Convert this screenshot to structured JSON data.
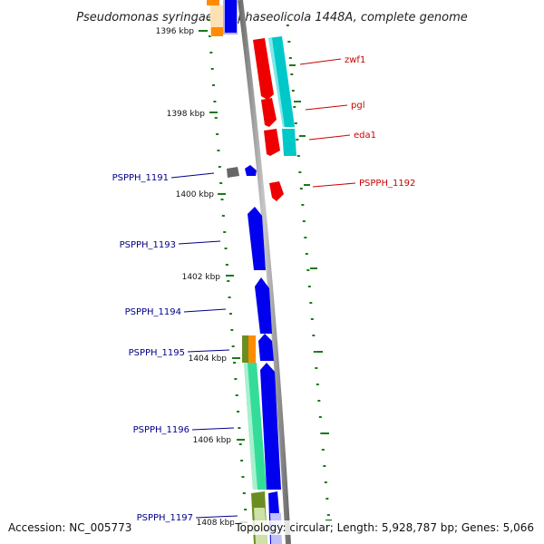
{
  "title": "Pseudomonas syringae pv. phaseolicola 1448A, complete genome",
  "accession": "Accession: NC_005773",
  "topology": "Topology: circular; Length: 5,928,787 bp; Genes: 5,066",
  "colors": {
    "backbone": "#8c8c8c",
    "tick": "#1a7a1a",
    "left_label": "#00008b",
    "right_label": "#cc0000",
    "blue": "#0000ee",
    "red": "#ee0000",
    "cyan": "#00c8c8",
    "green": "#33dd99",
    "olive": "#6b8e23",
    "orange": "#ff8c00",
    "gray": "#666666"
  },
  "kbp_labels": [
    {
      "text": "1396 kbp",
      "pos": 1396
    },
    {
      "text": "1398 kbp",
      "pos": 1398
    },
    {
      "text": "1400 kbp",
      "pos": 1400
    },
    {
      "text": "1402 kbp",
      "pos": 1402
    },
    {
      "text": "1404 kbp",
      "pos": 1404
    },
    {
      "text": "1406 kbp",
      "pos": 1406
    },
    {
      "text": "1408 kbp",
      "pos": 1408
    }
  ],
  "gene_labels_right": [
    {
      "text": "zwf1"
    },
    {
      "text": "pgl"
    },
    {
      "text": "eda1"
    },
    {
      "text": "PSPPH_1192"
    }
  ],
  "gene_labels_left": [
    {
      "text": "PSPPH_1191"
    },
    {
      "text": "PSPPH_1193"
    },
    {
      "text": "PSPPH_1194"
    },
    {
      "text": "PSPPH_1195"
    },
    {
      "text": "PSPPH_1196"
    },
    {
      "text": "PSPPH_1197"
    }
  ]
}
